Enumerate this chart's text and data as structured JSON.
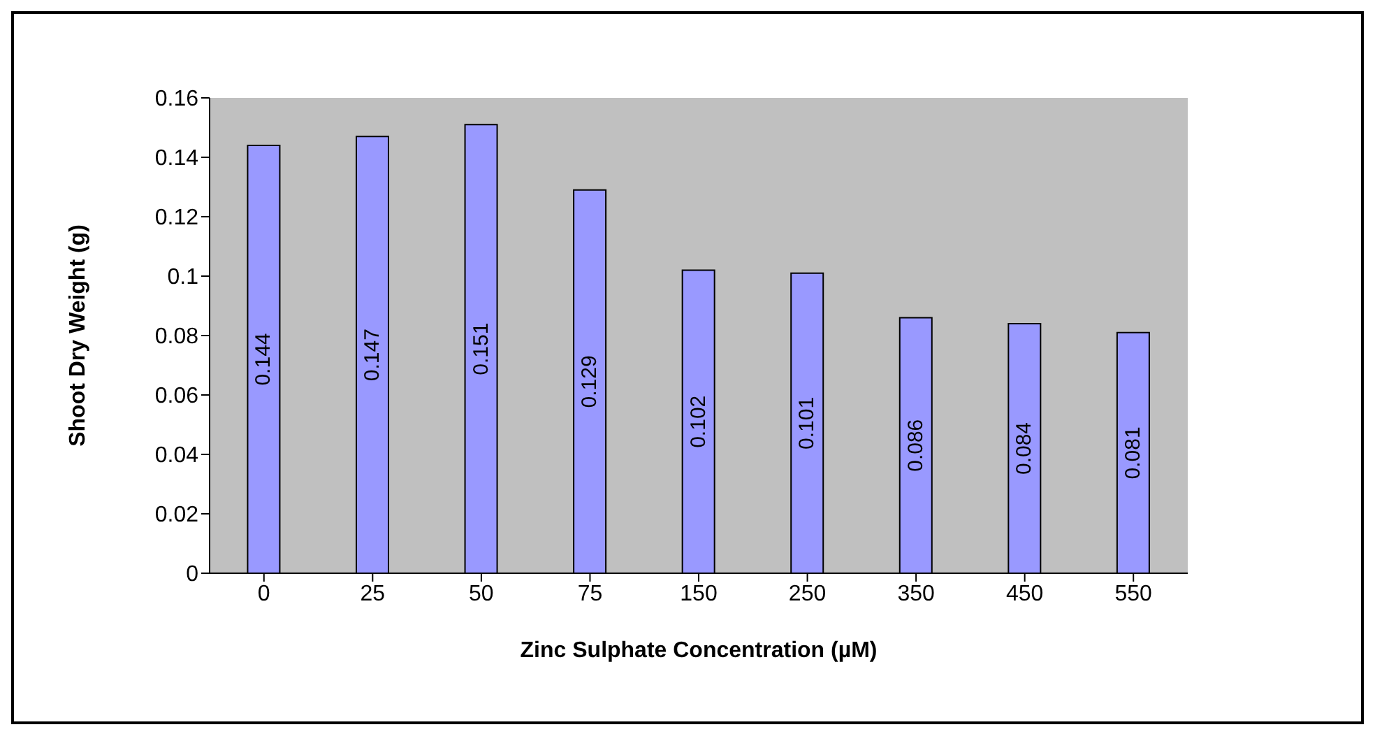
{
  "chart_data": {
    "type": "bar",
    "xlabel": "Zinc Sulphate Concentration (µM)",
    "ylabel": "Shoot Dry Weight (g)",
    "categories": [
      "0",
      "25",
      "50",
      "75",
      "150",
      "250",
      "350",
      "450",
      "550"
    ],
    "values": [
      0.144,
      0.147,
      0.151,
      0.129,
      0.102,
      0.101,
      0.086,
      0.084,
      0.081
    ],
    "color": "#9999ff",
    "ylim": [
      0,
      0.16
    ],
    "yticks": [
      0,
      0.02,
      0.04,
      0.06,
      0.08,
      0.1,
      0.12,
      0.14,
      0.16
    ],
    "grid": false,
    "data_labels": true
  }
}
